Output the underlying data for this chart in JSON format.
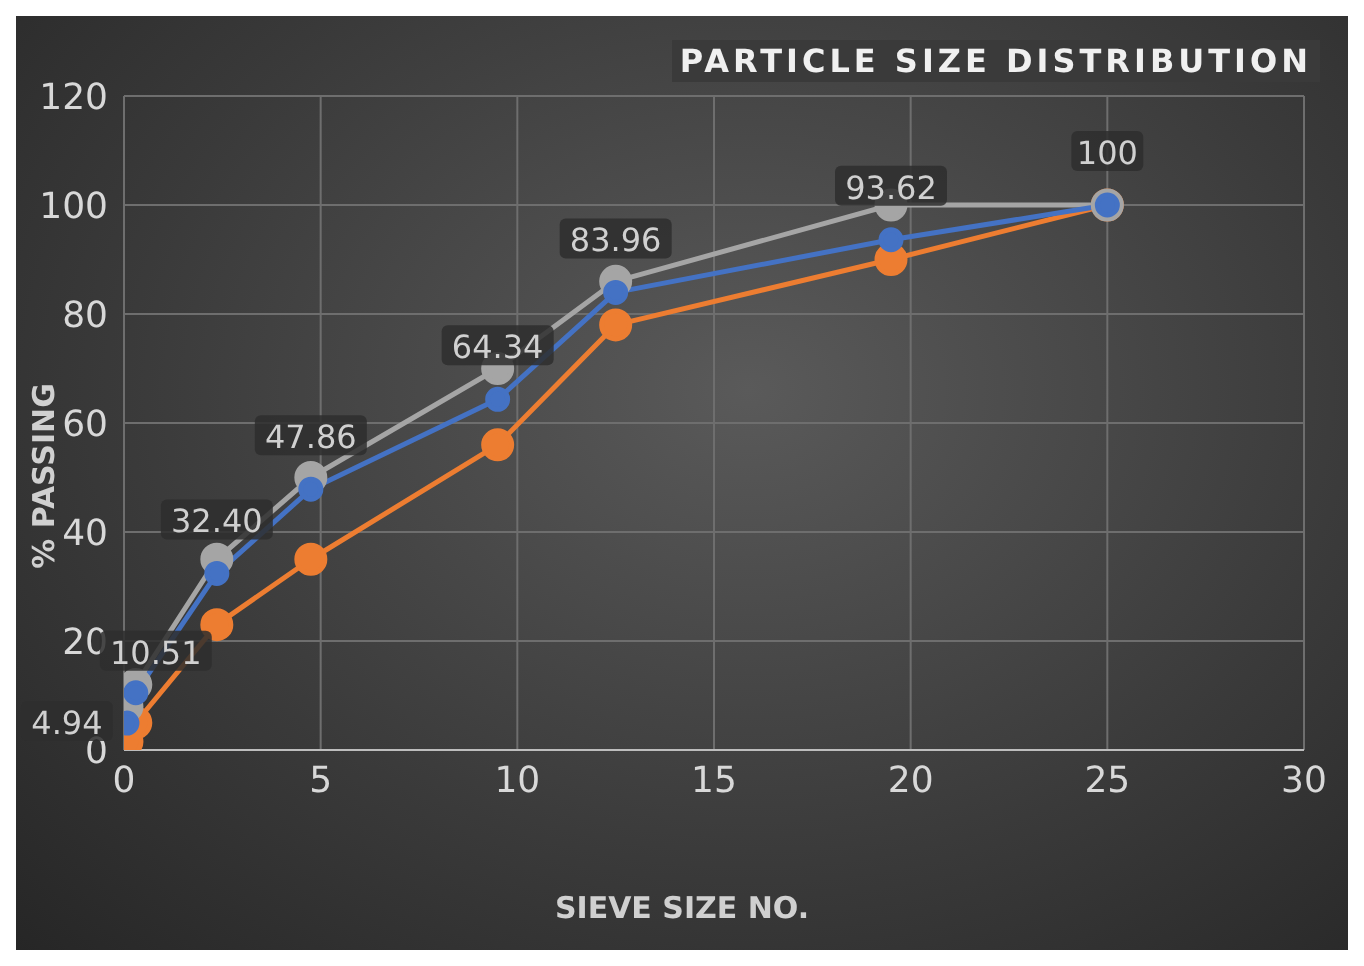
{
  "chart_data": {
    "type": "line",
    "title": "PARTICLE SIZE DISTRIBUTION",
    "xlabel": "SIEVE SIZE NO.",
    "ylabel": "% PASSING",
    "x": [
      0.075,
      0.3,
      2.36,
      4.75,
      9.5,
      12.5,
      19.5,
      25
    ],
    "series": [
      {
        "color": "#4472c4",
        "values": [
          4.94,
          10.51,
          32.4,
          47.86,
          64.34,
          83.96,
          93.62,
          100
        ],
        "value_labels": [
          "4.94",
          "10.51",
          "32.40",
          "47.86",
          "64.34",
          "83.96",
          "93.62",
          "100"
        ]
      },
      {
        "color": "#ed7d31",
        "values": [
          1.5,
          5,
          23,
          35,
          56,
          78,
          90,
          100
        ]
      },
      {
        "color": "#a5a5a5",
        "values": [
          8,
          12,
          35,
          50,
          70,
          86,
          100,
          100
        ]
      }
    ],
    "xlim": [
      0,
      30
    ],
    "xticks": [
      0,
      5,
      10,
      15,
      20,
      25,
      30
    ],
    "ylim": [
      0,
      120
    ],
    "yticks": [
      0,
      20,
      40,
      60,
      80,
      100,
      120
    ],
    "grid": true,
    "marker": "circle",
    "line_style": "solid"
  }
}
